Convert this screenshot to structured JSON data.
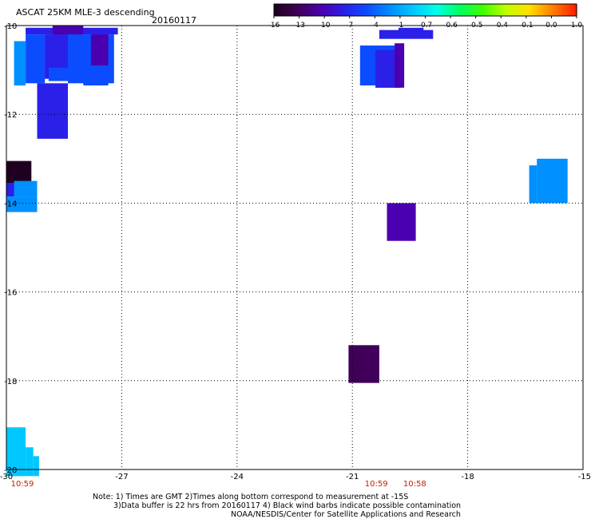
{
  "header": {
    "title": "ASCAT 25KM MLE-3 descending",
    "date": "20160117"
  },
  "colorbar": {
    "tick_labels": [
      "-16",
      "-13",
      "-10",
      "-7",
      "-4",
      "-1",
      "-0.7",
      "-0.6",
      "-0.5",
      "-0.4",
      "-0.1",
      "0.0",
      "1.0"
    ],
    "colors": [
      "#200020",
      "#40005a",
      "#4a00b0",
      "#2a20e8",
      "#0c4cff",
      "#0090ff",
      "#00c8ff",
      "#00ffe8",
      "#00ff60",
      "#40ff00",
      "#c0ff00",
      "#ffe000",
      "#ff8000",
      "#ff2000"
    ]
  },
  "map": {
    "lon_ticks": [
      "-30",
      "-27",
      "-24",
      "-21",
      "-18",
      "-15"
    ],
    "lat_ticks": [
      "-10",
      "-12",
      "-14",
      "-16",
      "-18",
      "-20"
    ],
    "lon_range": [
      -30,
      -15
    ],
    "lat_range": [
      -20,
      -10
    ],
    "grid_style": "dotted",
    "cells": [
      {
        "lon": -29.5,
        "lat": -10.05,
        "dlon": 2.4,
        "dlat": 0.15,
        "color": "#2a20e8"
      },
      {
        "lon": -28.8,
        "lat": -10.0,
        "dlon": 0.8,
        "dlat": 0.35,
        "color": "#4a00b0"
      },
      {
        "lon": -29.5,
        "lat": -10.2,
        "dlon": 0.5,
        "dlat": 1.1,
        "color": "#0c4cff"
      },
      {
        "lon": -29.0,
        "lat": -10.2,
        "dlon": 0.7,
        "dlat": 1.0,
        "color": "#2a20e8"
      },
      {
        "lon": -28.4,
        "lat": -10.2,
        "dlon": 1.2,
        "dlat": 1.1,
        "color": "#0c4cff"
      },
      {
        "lon": -27.8,
        "lat": -10.2,
        "dlon": 0.45,
        "dlat": 0.8,
        "color": "#4a00b0"
      },
      {
        "lon": -29.8,
        "lat": -10.35,
        "dlon": 0.3,
        "dlat": 1.0,
        "color": "#0090ff"
      },
      {
        "lon": -28.9,
        "lat": -10.95,
        "dlon": 0.8,
        "dlat": 0.3,
        "color": "#0c4cff"
      },
      {
        "lon": -28.0,
        "lat": -10.9,
        "dlon": 0.65,
        "dlat": 0.45,
        "color": "#0c4cff"
      },
      {
        "lon": -29.2,
        "lat": -11.3,
        "dlon": 0.8,
        "dlat": 1.25,
        "color": "#2a20e8"
      },
      {
        "lon": -30.0,
        "lat": -13.05,
        "dlon": 0.65,
        "dlat": 0.5,
        "color": "#200020"
      },
      {
        "lon": -30.0,
        "lat": -13.55,
        "dlon": 0.65,
        "dlat": 0.3,
        "color": "#2a20e8"
      },
      {
        "lon": -30.0,
        "lat": -13.85,
        "dlon": 0.8,
        "dlat": 0.35,
        "color": "#0090ff"
      },
      {
        "lon": -29.8,
        "lat": -13.5,
        "dlon": 0.6,
        "dlat": 0.35,
        "color": "#0090ff"
      },
      {
        "lon": -20.3,
        "lat": -10.1,
        "dlon": 1.4,
        "dlat": 0.2,
        "color": "#2a20e8"
      },
      {
        "lon": -19.8,
        "lat": -10.05,
        "dlon": 0.65,
        "dlat": 0.15,
        "color": "#2a20e8"
      },
      {
        "lon": -20.8,
        "lat": -10.45,
        "dlon": 1.0,
        "dlat": 0.9,
        "color": "#0c4cff"
      },
      {
        "lon": -20.4,
        "lat": -10.55,
        "dlon": 0.65,
        "dlat": 0.85,
        "color": "#2a20e8"
      },
      {
        "lon": -19.9,
        "lat": -10.4,
        "dlon": 0.25,
        "dlat": 1.0,
        "color": "#4a00b0"
      },
      {
        "lon": -16.2,
        "lat": -13.0,
        "dlon": 0.8,
        "dlat": 1.0,
        "color": "#0090ff"
      },
      {
        "lon": -16.4,
        "lat": -13.15,
        "dlon": 0.2,
        "dlat": 0.85,
        "color": "#0090ff"
      },
      {
        "lon": -20.1,
        "lat": -14.0,
        "dlon": 0.75,
        "dlat": 0.85,
        "color": "#4a00b0"
      },
      {
        "lon": -21.1,
        "lat": -17.2,
        "dlon": 0.8,
        "dlat": 0.85,
        "color": "#40005a"
      },
      {
        "lon": -30.0,
        "lat": -19.05,
        "dlon": 0.5,
        "dlat": 1.1,
        "color": "#00c8ff"
      },
      {
        "lon": -29.5,
        "lat": -19.5,
        "dlon": 0.2,
        "dlat": 0.65,
        "color": "#00c8ff"
      },
      {
        "lon": -29.3,
        "lat": -19.7,
        "dlon": 0.15,
        "dlat": 0.45,
        "color": "#00c8ff"
      }
    ],
    "time_labels": [
      {
        "lon": -30.0,
        "text": "10:59",
        "color": "#c02000"
      },
      {
        "lon": -21.0,
        "text": "10:59",
        "color": "#c02000"
      },
      {
        "lon": -20.0,
        "text": "10:58",
        "color": "#c02000"
      }
    ]
  },
  "notes": {
    "line1": "Note: 1) Times are GMT 2)Times along bottom correspond to measurement at -15S",
    "line2": "3)Data buffer is 22 hrs from 20160117 4) Black wind barbs indicate possible contamination",
    "line3": "NOAA/NESDIS/Center for Satellite Applications and Research"
  }
}
